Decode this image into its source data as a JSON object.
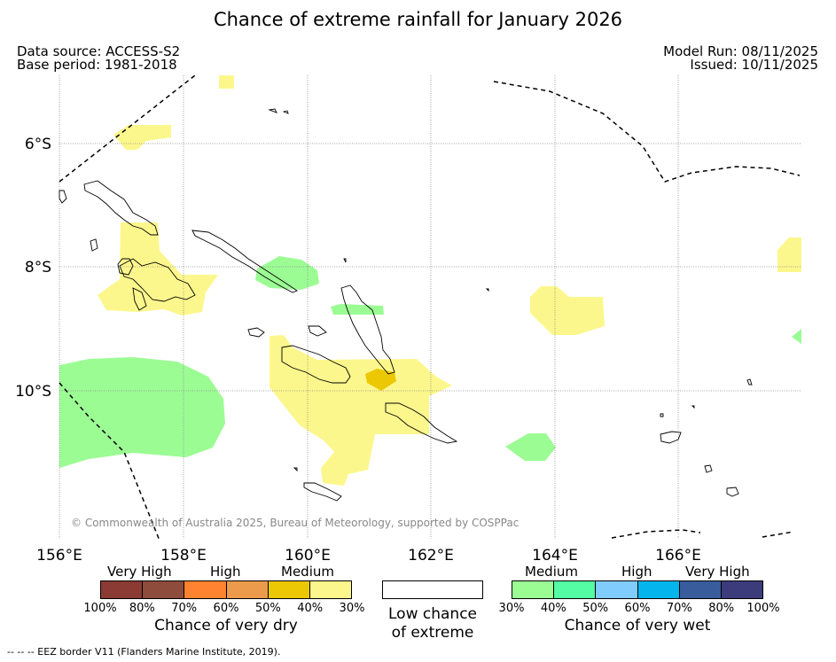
{
  "title": "Chance of extreme rainfall for January 2026",
  "header": {
    "data_source": "Data source: ACCESS-S2",
    "base_period": "Base period: 1981-2018",
    "model_run": "Model Run: 08/11/2025",
    "issued": "Issued: 10/11/2025"
  },
  "map": {
    "lat_labels": [
      "6°S",
      "8°S",
      "10°S"
    ],
    "lon_labels": [
      "156°E",
      "158°E",
      "160°E",
      "162°E",
      "164°E",
      "166°E"
    ],
    "copyright": "© Commonwealth of Australia 2025, Bureau of Meteorology, supported by COSPPac"
  },
  "legend": {
    "dry": {
      "levels": [
        "Very High",
        "High",
        "Medium"
      ],
      "colors": [
        "#8b3a34",
        "#8e4c3c",
        "#ff8330",
        "#ec9b4c",
        "#ecc704",
        "#fcf78c"
      ],
      "ticks": [
        "100%",
        "80%",
        "70%",
        "60%",
        "50%",
        "40%",
        "30%"
      ],
      "caption": "Chance of very dry"
    },
    "low": {
      "caption_line1": "Low chance",
      "caption_line2": "of extreme"
    },
    "wet": {
      "levels": [
        "Medium",
        "High",
        "Very High"
      ],
      "colors": [
        "#9cfc94",
        "#54fca4",
        "#80ccfc",
        "#04b4ec",
        "#385c9c",
        "#3c3c7c"
      ],
      "ticks": [
        "30%",
        "40%",
        "50%",
        "60%",
        "70%",
        "80%",
        "100%"
      ],
      "caption": "Chance of very wet"
    }
  },
  "footer": "--  --  -- EEZ border V11 (Flanders Marine Institute, 2019)."
}
